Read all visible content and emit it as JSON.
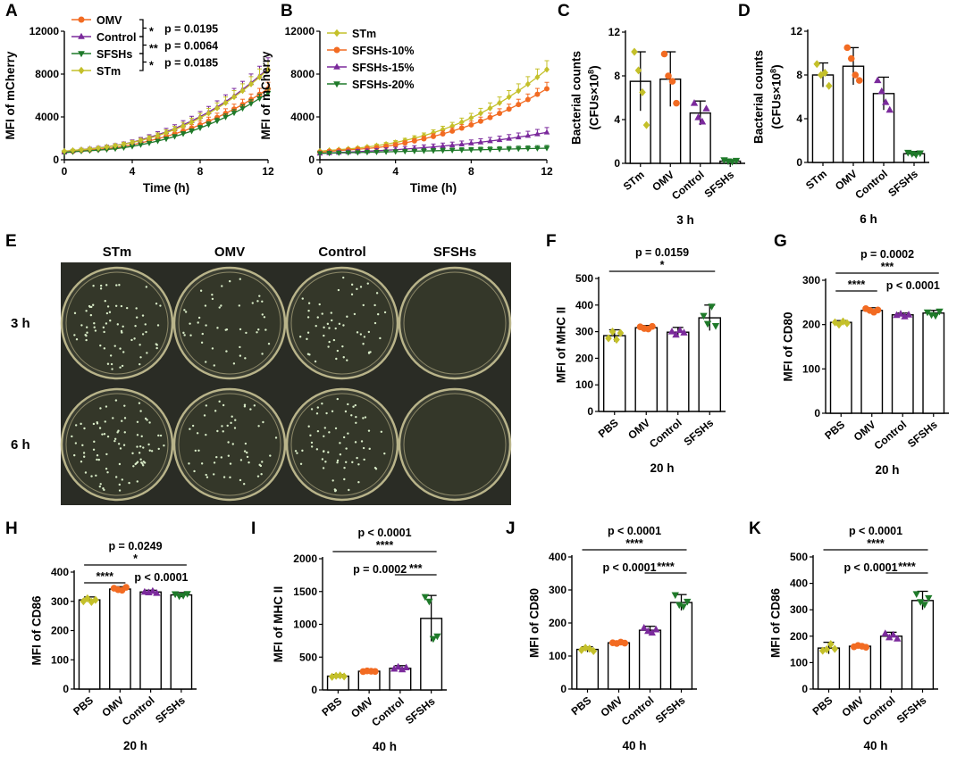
{
  "colors": {
    "STm": "#c4c02a",
    "OMV": "#f26b22",
    "Control": "#7b2a9c",
    "SFSHs": "#1f7a2a",
    "SFSHs15": "#7b2a9c",
    "SFSHs20": "#1f7a2a"
  },
  "panel_labels": [
    "A",
    "B",
    "C",
    "D",
    "E",
    "F",
    "G",
    "H",
    "I",
    "J",
    "K"
  ],
  "plates": {
    "columns": [
      "STm",
      "OMV",
      "Control",
      "SFSHs"
    ],
    "rows": [
      "3 h",
      "6 h"
    ],
    "colony_density": {
      "3 h": [
        70,
        45,
        55,
        0
      ],
      "6 h": [
        85,
        55,
        65,
        0
      ]
    }
  },
  "chart_data": [
    {
      "id": "A",
      "type": "line",
      "title": "",
      "xlabel": "Time (h)",
      "ylabel": "MFI of mCherry",
      "xlim": [
        0,
        12
      ],
      "ylim": [
        0,
        12000
      ],
      "xticks": [
        0,
        4,
        8,
        12
      ],
      "yticks": [
        0,
        4000,
        8000,
        12000
      ],
      "x": [
        0,
        0.5,
        1,
        1.5,
        2,
        2.5,
        3,
        3.5,
        4,
        4.5,
        5,
        5.5,
        6,
        6.5,
        7,
        7.5,
        8,
        8.5,
        9,
        9.5,
        10,
        10.5,
        11,
        11.5,
        12
      ],
      "series": [
        {
          "name": "OMV",
          "color_key": "OMV",
          "marker": "circle",
          "values": [
            700,
            780,
            860,
            920,
            980,
            1050,
            1130,
            1250,
            1400,
            1570,
            1760,
            1960,
            2180,
            2420,
            2680,
            2960,
            3260,
            3600,
            3950,
            4330,
            4730,
            5160,
            5620,
            6110,
            6630
          ],
          "err": [
            100,
            100,
            110,
            110,
            120,
            130,
            140,
            150,
            170,
            190,
            210,
            230,
            250,
            270,
            300,
            320,
            350,
            380,
            400,
            430,
            460,
            490,
            520,
            550,
            600
          ]
        },
        {
          "name": "Control",
          "color_key": "Control",
          "marker": "triangle",
          "values": [
            700,
            860,
            950,
            1030,
            1110,
            1210,
            1330,
            1470,
            1640,
            1850,
            2080,
            2330,
            2610,
            2920,
            3260,
            3630,
            4030,
            4460,
            4930,
            5430,
            5970,
            6560,
            7180,
            7830,
            8520
          ],
          "err": [
            100,
            110,
            120,
            130,
            140,
            150,
            170,
            190,
            210,
            230,
            260,
            290,
            320,
            350,
            390,
            430,
            470,
            520,
            570,
            630,
            690,
            760,
            830,
            900,
            1000
          ]
        },
        {
          "name": "SFSHs",
          "color_key": "SFSHs",
          "marker": "invtriangle",
          "values": [
            650,
            740,
            800,
            850,
            900,
            960,
            1030,
            1130,
            1250,
            1400,
            1560,
            1750,
            1950,
            2170,
            2420,
            2680,
            2970,
            3280,
            3620,
            3980,
            4370,
            4790,
            5240,
            5720,
            6230
          ],
          "err": [
            70,
            70,
            80,
            80,
            90,
            90,
            100,
            110,
            120,
            130,
            140,
            150,
            170,
            180,
            200,
            210,
            230,
            250,
            270,
            290,
            310,
            330,
            360,
            390,
            420
          ]
        },
        {
          "name": "STm",
          "color_key": "STm",
          "marker": "diamond",
          "values": [
            800,
            880,
            940,
            1010,
            1090,
            1190,
            1310,
            1450,
            1610,
            1800,
            2010,
            2250,
            2520,
            2820,
            3150,
            3510,
            3910,
            4340,
            4810,
            5310,
            5860,
            6440,
            7060,
            7720,
            8430
          ],
          "err": [
            80,
            80,
            90,
            100,
            110,
            120,
            140,
            160,
            180,
            200,
            230,
            250,
            280,
            310,
            340,
            380,
            420,
            460,
            500,
            550,
            600,
            650,
            700,
            760,
            820
          ]
        }
      ],
      "significance": [
        {
          "stars": "*",
          "p": "p = 0.0195",
          "pair": [
            "OMV",
            "Control"
          ]
        },
        {
          "stars": "**",
          "p": "p = 0.0064",
          "pair": [
            "Control",
            "SFSHs"
          ]
        },
        {
          "stars": "*",
          "p": "p = 0.0185",
          "pair": [
            "SFSHs",
            "STm"
          ]
        }
      ]
    },
    {
      "id": "B",
      "type": "line",
      "title": "",
      "xlabel": "Time (h)",
      "ylabel": "MFI of mCherry",
      "xlim": [
        0,
        12
      ],
      "ylim": [
        0,
        12000
      ],
      "xticks": [
        0,
        4,
        8,
        12
      ],
      "yticks": [
        0,
        4000,
        8000,
        12000
      ],
      "x": [
        0,
        0.5,
        1,
        1.5,
        2,
        2.5,
        3,
        3.5,
        4,
        4.5,
        5,
        5.5,
        6,
        6.5,
        7,
        7.5,
        8,
        8.5,
        9,
        9.5,
        10,
        10.5,
        11,
        11.5,
        12
      ],
      "series": [
        {
          "name": "STm",
          "color_key": "STm",
          "marker": "diamond",
          "values": [
            800,
            880,
            940,
            1010,
            1090,
            1190,
            1310,
            1450,
            1610,
            1800,
            2010,
            2250,
            2520,
            2820,
            3150,
            3510,
            3910,
            4340,
            4810,
            5310,
            5860,
            6440,
            7060,
            7720,
            8430
          ],
          "err": [
            80,
            80,
            90,
            100,
            110,
            120,
            140,
            160,
            180,
            200,
            230,
            250,
            280,
            310,
            340,
            380,
            420,
            460,
            500,
            550,
            600,
            650,
            700,
            760,
            820
          ]
        },
        {
          "name": "SFSHs-10%",
          "color_key": "OMV",
          "marker": "circle",
          "values": [
            700,
            780,
            860,
            920,
            980,
            1050,
            1130,
            1250,
            1400,
            1570,
            1760,
            1960,
            2180,
            2420,
            2680,
            2960,
            3260,
            3600,
            3950,
            4330,
            4730,
            5160,
            5620,
            6110,
            6630
          ],
          "err": [
            100,
            100,
            110,
            110,
            120,
            130,
            140,
            150,
            170,
            190,
            210,
            230,
            250,
            270,
            300,
            320,
            350,
            380,
            400,
            430,
            460,
            490,
            520,
            550,
            600
          ]
        },
        {
          "name": "SFSHs-15%",
          "color_key": "SFSHs15",
          "marker": "triangle",
          "values": [
            600,
            640,
            680,
            720,
            760,
            800,
            840,
            890,
            940,
            1000,
            1060,
            1130,
            1200,
            1280,
            1360,
            1450,
            1540,
            1640,
            1750,
            1860,
            1980,
            2110,
            2250,
            2400,
            2560
          ],
          "err": [
            150,
            160,
            170,
            180,
            190,
            200,
            210,
            220,
            230,
            240,
            250,
            260,
            270,
            280,
            290,
            300,
            310,
            320,
            330,
            350,
            370,
            390,
            410,
            430,
            450
          ]
        },
        {
          "name": "SFSHs-20%",
          "color_key": "SFSHs20",
          "marker": "invtriangle",
          "values": [
            600,
            620,
            640,
            660,
            680,
            700,
            720,
            740,
            760,
            780,
            800,
            820,
            840,
            860,
            880,
            900,
            920,
            940,
            960,
            980,
            1000,
            1020,
            1040,
            1060,
            1080
          ],
          "err": [
            150,
            150,
            150,
            160,
            160,
            170,
            170,
            180,
            180,
            190,
            190,
            200,
            200,
            210,
            210,
            220,
            220,
            230,
            230,
            240,
            240,
            250,
            250,
            260,
            260
          ]
        }
      ]
    },
    {
      "id": "C",
      "type": "bar",
      "ylabel": "Bacterial counts",
      "ylabel2": "(CFUs×10",
      "ylabel2_sup": "8",
      "ylabel2_end": ")",
      "xlabel": "3 h",
      "categories": [
        "STm",
        "OMV",
        "Control",
        "SFSHs"
      ],
      "ylim": [
        0,
        12
      ],
      "yticks": [
        0,
        4,
        8,
        12
      ],
      "values": [
        7.5,
        7.7,
        4.6,
        0.2
      ],
      "err": [
        2.7,
        2.5,
        1.1,
        0.1
      ],
      "points": [
        [
          10.2,
          8.5,
          6.5,
          3.5
        ],
        [
          10.0,
          8.0,
          7.5,
          5.5
        ],
        [
          5.5,
          4.2,
          3.8,
          5.0
        ],
        [
          0.3,
          0.2,
          0.15,
          0.25
        ]
      ]
    },
    {
      "id": "D",
      "type": "bar",
      "ylabel": "Bacterial counts",
      "ylabel2": "(CFUs×10",
      "ylabel2_sup": "8",
      "ylabel2_end": ")",
      "xlabel": "6 h",
      "categories": [
        "STm",
        "OMV",
        "Control",
        "SFSHs"
      ],
      "ylim": [
        0,
        12
      ],
      "yticks": [
        0,
        4,
        8,
        12
      ],
      "values": [
        8.0,
        8.8,
        6.3,
        0.8
      ],
      "err": [
        1.1,
        1.7,
        1.5,
        0.2
      ],
      "points": [
        [
          9.0,
          8.0,
          8.2,
          7.0
        ],
        [
          10.5,
          9.5,
          8.0,
          7.5
        ],
        [
          7.5,
          6.5,
          5.5,
          4.8
        ],
        [
          0.9,
          0.8,
          0.7,
          0.85
        ]
      ]
    },
    {
      "id": "F",
      "type": "bar",
      "ylabel": "MFI of MHC II",
      "xlabel": "20 h",
      "categories": [
        "PBS",
        "OMV",
        "Control",
        "SFSHs"
      ],
      "ylim": [
        0,
        500
      ],
      "yticks": [
        0,
        100,
        200,
        300,
        400,
        500
      ],
      "values": [
        285,
        315,
        298,
        352
      ],
      "err": [
        22,
        8,
        18,
        48
      ],
      "points": [
        [
          275,
          300,
          270,
          295
        ],
        [
          318,
          312,
          310,
          320
        ],
        [
          300,
          288,
          305,
          296
        ],
        [
          360,
          330,
          395,
          322
        ]
      ],
      "sig": [
        {
          "from": 0,
          "to": 3,
          "stars": "*",
          "p": "p = 0.0159"
        }
      ]
    },
    {
      "id": "G",
      "type": "bar",
      "ylabel": "MFI of CD80",
      "xlabel": "20 h",
      "categories": [
        "PBS",
        "OMV",
        "Control",
        "SFSHs"
      ],
      "ylim": [
        0,
        300
      ],
      "yticks": [
        0,
        100,
        200,
        300
      ],
      "values": [
        205,
        232,
        222,
        226
      ],
      "err": [
        4,
        6,
        4,
        6
      ],
      "points": [
        [
          205,
          200,
          207,
          203
        ],
        [
          236,
          232,
          228,
          233
        ],
        [
          221,
          224,
          218,
          222
        ],
        [
          228,
          222,
          220,
          230
        ]
      ],
      "sig": [
        {
          "from": 0,
          "to": 3,
          "stars": "***",
          "p": "p = 0.0002"
        },
        {
          "from": 0,
          "to": 1,
          "stars": "****",
          "p": ""
        },
        {
          "from": -1,
          "to": -1,
          "stars": "",
          "p": "p < 0.0001"
        }
      ]
    },
    {
      "id": "H",
      "type": "bar",
      "ylabel": "MFI of CD86",
      "xlabel": "20 h",
      "categories": [
        "PBS",
        "OMV",
        "Control",
        "SFSHs"
      ],
      "ylim": [
        0,
        400
      ],
      "yticks": [
        0,
        100,
        200,
        300,
        400
      ],
      "values": [
        305,
        342,
        332,
        322
      ],
      "err": [
        10,
        8,
        6,
        8
      ],
      "points": [
        [
          300,
          310,
          298,
          305
        ],
        [
          345,
          340,
          338,
          348
        ],
        [
          332,
          330,
          335,
          328
        ],
        [
          325,
          318,
          320,
          326
        ]
      ],
      "sig": [
        {
          "from": 0,
          "to": 3,
          "stars": "*",
          "p": "p = 0.0249"
        },
        {
          "from": 0,
          "to": 1,
          "stars": "****",
          "p": ""
        },
        {
          "from": -1,
          "to": -1,
          "stars": "",
          "p": "p < 0.0001"
        }
      ]
    },
    {
      "id": "I",
      "type": "bar",
      "ylabel": "MFI of MHC II",
      "xlabel": "40 h",
      "categories": [
        "PBS",
        "OMV",
        "Control",
        "SFSHs"
      ],
      "ylim": [
        0,
        2000
      ],
      "yticks": [
        0,
        500,
        1000,
        1500,
        2000
      ],
      "values": [
        210,
        285,
        330,
        1090
      ],
      "err": [
        25,
        20,
        40,
        350
      ],
      "points": [
        [
          200,
          215,
          220,
          205
        ],
        [
          280,
          290,
          285,
          282
        ],
        [
          320,
          350,
          310,
          340
        ],
        [
          1420,
          1350,
          780,
          820
        ]
      ],
      "sig": [
        {
          "from": 0,
          "to": 3,
          "stars": "****",
          "p": "p < 0.0001"
        },
        {
          "from": 2,
          "to": 3,
          "stars": "***",
          "p": "p = 0.0002"
        }
      ]
    },
    {
      "id": "J",
      "type": "bar",
      "ylabel": "MFI of CD80",
      "xlabel": "40 h",
      "categories": [
        "PBS",
        "OMV",
        "Control",
        "SFSHs"
      ],
      "ylim": [
        0,
        400
      ],
      "yticks": [
        0,
        100,
        200,
        300,
        400
      ],
      "values": [
        120,
        140,
        178,
        262
      ],
      "err": [
        8,
        5,
        12,
        24
      ],
      "points": [
        [
          118,
          125,
          122,
          115
        ],
        [
          140,
          138,
          142,
          139
        ],
        [
          185,
          175,
          170,
          180
        ],
        [
          285,
          255,
          250,
          265
        ]
      ],
      "sig": [
        {
          "from": 0,
          "to": 3,
          "stars": "****",
          "p": "p < 0.0001"
        },
        {
          "from": 2,
          "to": 3,
          "stars": "****",
          "p": "p < 0.0001"
        }
      ]
    },
    {
      "id": "K",
      "type": "bar",
      "ylabel": "MFI of CD86",
      "xlabel": "40 h",
      "categories": [
        "PBS",
        "OMV",
        "Control",
        "SFSHs"
      ],
      "ylim": [
        0,
        500
      ],
      "yticks": [
        0,
        100,
        200,
        300,
        400,
        500
      ],
      "values": [
        155,
        162,
        200,
        335
      ],
      "err": [
        22,
        6,
        15,
        35
      ],
      "points": [
        [
          145,
          150,
          170,
          152
        ],
        [
          160,
          165,
          162,
          158
        ],
        [
          210,
          195,
          205,
          190
        ],
        [
          360,
          330,
          320,
          345
        ]
      ],
      "sig": [
        {
          "from": 0,
          "to": 3,
          "stars": "****",
          "p": "p < 0.0001"
        },
        {
          "from": 2,
          "to": 3,
          "stars": "****",
          "p": "p < 0.0001"
        }
      ]
    }
  ]
}
